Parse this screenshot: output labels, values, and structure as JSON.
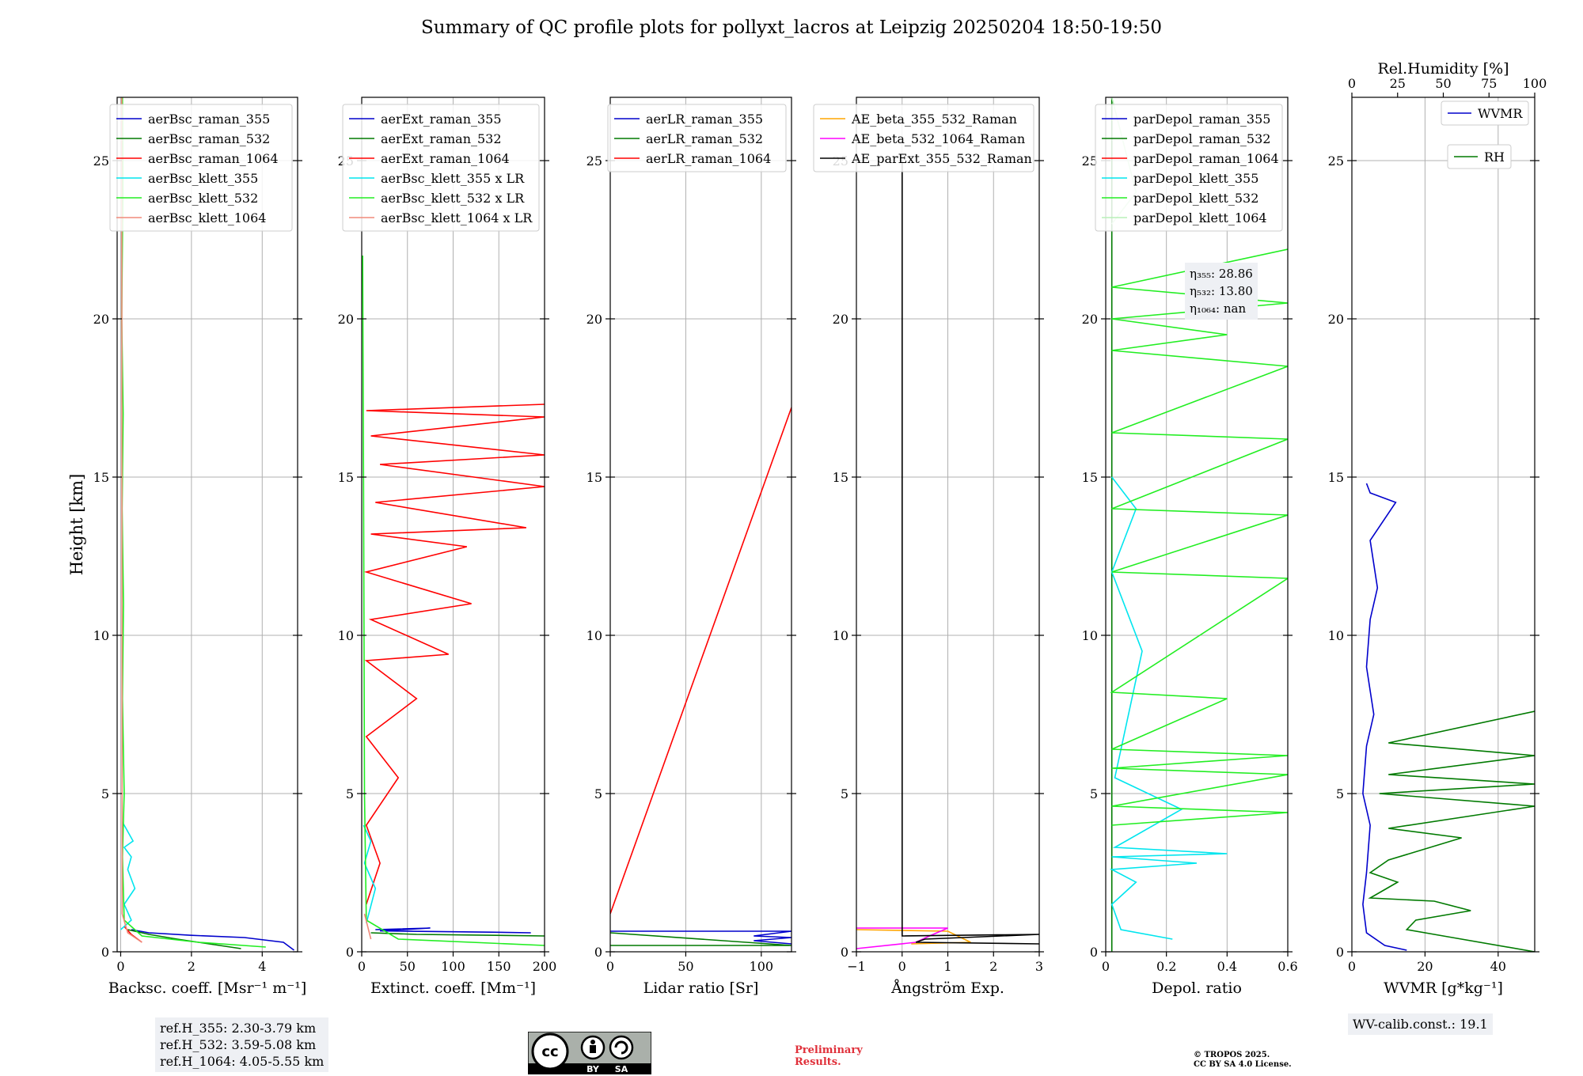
{
  "title": "Summary of QC profile plots for pollyxt_lacros at Leipzig 20250204 18:50-19:50",
  "ylabel": "Height [km]",
  "ref_box": [
    "ref.H_355: 2.30-3.79 km",
    "ref.H_532: 3.59-5.08 km",
    "ref.H_1064: 4.05-5.55 km"
  ],
  "eta_box": [
    "η₃₅₅: 28.86",
    "η₅₃₂: 13.80",
    "η₁₀₆₄: nan"
  ],
  "wv_box": "WV-calib.const.: 19.1",
  "preliminary": [
    "Preliminary",
    "Results."
  ],
  "copyright": [
    "© TROPOS 2025.",
    "CC BY SA 4.0 License."
  ],
  "license_badge": {
    "cc": "cc",
    "by": "BY",
    "sa": "SA"
  },
  "colors": {
    "blue": "#0000cc",
    "green": "#007a00",
    "red": "#ff0000",
    "cyan": "#00e5ee",
    "lime": "#22ee22",
    "salmon": "#f08a7a",
    "orange": "#ffa500",
    "magenta": "#ff00ff",
    "black": "#000000",
    "infobox": "#eef0f4",
    "grid": "#b0b0b0"
  },
  "chart_data": [
    {
      "type": "line",
      "id": "bsc",
      "xlabel": "Backsc. coeff. [Msr⁻¹ m⁻¹]",
      "ylabel": "Height [km]",
      "xlim": [
        -0.1,
        5
      ],
      "ylim": [
        0,
        27
      ],
      "xticks": [
        0,
        2,
        4
      ],
      "yticks": [
        0,
        5,
        10,
        15,
        20,
        25
      ],
      "grid": true,
      "legend": "top-right",
      "series": [
        {
          "name": "aerBsc_raman_355",
          "color": "#0000cc",
          "x": [
            4.9,
            4.6,
            3.5,
            2.0,
            0.8,
            0.3
          ],
          "y": [
            0.05,
            0.3,
            0.45,
            0.52,
            0.6,
            0.7
          ]
        },
        {
          "name": "aerBsc_raman_532",
          "color": "#007a00",
          "x": [
            3.4,
            2.5,
            1.6,
            0.8,
            0.2
          ],
          "y": [
            0.1,
            0.25,
            0.4,
            0.55,
            0.7
          ]
        },
        {
          "name": "aerBsc_raman_1064",
          "color": "#ff0000",
          "x": [
            0.6,
            0.3,
            0.1
          ],
          "y": [
            0.3,
            0.55,
            0.8
          ]
        },
        {
          "name": "aerBsc_klett_355",
          "color": "#00e5ee",
          "x": [
            0.0,
            0.3,
            0.1,
            0.4,
            0.2,
            0.3,
            0.1,
            0.35,
            0.05
          ],
          "y": [
            0.7,
            1.0,
            1.5,
            2.0,
            2.6,
            3.0,
            3.3,
            3.5,
            4.1
          ]
        },
        {
          "name": "aerBsc_klett_532",
          "color": "#22ee22",
          "x": [
            4.1,
            2.2,
            0.6,
            0.1,
            0.05,
            0.1,
            0.05,
            0.08,
            0.04,
            0.07,
            0.03,
            0.06,
            0.05
          ],
          "y": [
            0.15,
            0.3,
            0.5,
            1.0,
            3.0,
            5.0,
            8.0,
            11.0,
            14.0,
            17.0,
            20.0,
            24.0,
            27.0
          ]
        },
        {
          "name": "aerBsc_klett_1064",
          "color": "#f08a7a",
          "x": [
            0.6,
            0.2,
            0.04,
            0.03
          ],
          "y": [
            0.3,
            0.6,
            1.2,
            27.0
          ]
        }
      ]
    },
    {
      "type": "line",
      "id": "ext",
      "xlabel": "Extinct. coeff. [Mm⁻¹]",
      "xlim": [
        0,
        200
      ],
      "ylim": [
        0,
        27
      ],
      "xticks": [
        0,
        50,
        100,
        150,
        200
      ],
      "yticks": [
        0,
        5,
        10,
        15,
        20,
        25
      ],
      "grid": true,
      "legend": "top-right",
      "series": [
        {
          "name": "aerExt_raman_355",
          "color": "#0000cc",
          "x": [
            185,
            140,
            20,
            75,
            15
          ],
          "y": [
            0.6,
            0.62,
            0.66,
            0.75,
            0.7
          ]
        },
        {
          "name": "aerExt_raman_532",
          "color": "#007a00",
          "x": [
            200,
            60,
            10
          ],
          "y": [
            0.5,
            0.55,
            0.6
          ]
        },
        {
          "name": "aerExt_raman_1064",
          "color": "#ff0000",
          "x": [
            5,
            20,
            5,
            40,
            5,
            60,
            5,
            95,
            10,
            120,
            5,
            115,
            10,
            180,
            15,
            200,
            20,
            200,
            10,
            200,
            5,
            200
          ],
          "y": [
            1.5,
            2.8,
            4.0,
            5.5,
            6.8,
            8.0,
            9.2,
            9.4,
            10.5,
            11.0,
            12.0,
            12.8,
            13.2,
            13.4,
            14.2,
            14.7,
            15.4,
            15.7,
            16.3,
            16.9,
            17.1,
            17.3
          ]
        },
        {
          "name": "aerBsc_klett_355 x LR",
          "color": "#00e5ee",
          "x": [
            5,
            15,
            3,
            10,
            2
          ],
          "y": [
            0.9,
            2.0,
            2.8,
            3.5,
            4.0
          ]
        },
        {
          "name": "aerBsc_klett_532 x LR",
          "color": "#22ee22",
          "x": [
            200,
            40,
            5,
            3,
            2,
            1
          ],
          "y": [
            0.2,
            0.4,
            1.0,
            5.0,
            15.0,
            22.0
          ]
        },
        {
          "name": "aerBsc_klett_1064 x LR",
          "color": "#f08a7a",
          "x": [
            10,
            3
          ],
          "y": [
            0.4,
            1.2
          ]
        }
      ]
    },
    {
      "type": "line",
      "id": "lr",
      "xlabel": "Lidar ratio [Sr]",
      "xlim": [
        0,
        120
      ],
      "ylim": [
        0,
        27
      ],
      "xticks": [
        0,
        50,
        100
      ],
      "yticks": [
        0,
        5,
        10,
        15,
        20,
        25
      ],
      "grid": true,
      "legend": "top-right",
      "series": [
        {
          "name": "aerLR_raman_355",
          "color": "#0000cc",
          "x": [
            0,
            120,
            95,
            120,
            95,
            120
          ],
          "y": [
            0.65,
            0.65,
            0.5,
            0.45,
            0.35,
            0.25
          ]
        },
        {
          "name": "aerLR_raman_532",
          "color": "#007a00",
          "x": [
            0,
            120,
            0
          ],
          "y": [
            0.2,
            0.2,
            0.6
          ]
        },
        {
          "name": "aerLR_raman_1064",
          "color": "#ff0000",
          "x": [
            0,
            120
          ],
          "y": [
            1.2,
            17.2
          ]
        }
      ]
    },
    {
      "type": "line",
      "id": "ae",
      "xlabel": "Ångström Exp.",
      "xlim": [
        -1,
        3
      ],
      "ylim": [
        0,
        27
      ],
      "xticks": [
        -1,
        0,
        1,
        2,
        3
      ],
      "yticks": [
        0,
        5,
        10,
        15,
        20,
        25
      ],
      "grid": true,
      "legend": "top-right",
      "series": [
        {
          "name": "AE_beta_355_532_Raman",
          "color": "#ffa500",
          "x": [
            -1,
            1.0,
            1.5,
            0.2
          ],
          "y": [
            0.7,
            0.65,
            0.3,
            0.25
          ]
        },
        {
          "name": "AE_beta_532_1064_Raman",
          "color": "#ff00ff",
          "x": [
            -1,
            1.0,
            0.6,
            0.3,
            -1
          ],
          "y": [
            0.75,
            0.75,
            0.5,
            0.3,
            0.1
          ]
        },
        {
          "name": "AE_parExt_355_532_Raman",
          "color": "#000000",
          "x": [
            0,
            0,
            3,
            0.5,
            0.3,
            3
          ],
          "y": [
            25.0,
            0.5,
            0.55,
            0.4,
            0.3,
            0.25
          ]
        }
      ]
    },
    {
      "type": "line",
      "id": "depol",
      "xlabel": "Depol. ratio",
      "xlim": [
        0,
        0.6
      ],
      "ylim": [
        0,
        27
      ],
      "xticks": [
        0.0,
        0.2,
        0.4,
        0.6
      ],
      "yticks": [
        0,
        5,
        10,
        15,
        20,
        25
      ],
      "grid": true,
      "legend": "top-right",
      "series": [
        {
          "name": "parDepol_raman_355",
          "color": "#0000cc",
          "x": [],
          "y": []
        },
        {
          "name": "parDepol_raman_532",
          "color": "#007a00",
          "x": [
            0.02,
            0.02
          ],
          "y": [
            0,
            27
          ]
        },
        {
          "name": "parDepol_raman_1064",
          "color": "#ff0000",
          "x": [],
          "y": []
        },
        {
          "name": "parDepol_klett_355",
          "color": "#00e5ee",
          "x": [
            0.22,
            0.05,
            0.02,
            0.1,
            0.02,
            0.3,
            0.02,
            0.4,
            0.03,
            0.25,
            0.03,
            0.12,
            0.02,
            0.1,
            0.02
          ],
          "y": [
            0.4,
            0.7,
            1.5,
            2.2,
            2.6,
            2.8,
            3.0,
            3.1,
            3.3,
            4.5,
            5.5,
            9.5,
            12.0,
            14.0,
            15.0
          ]
        },
        {
          "name": "parDepol_klett_532",
          "color": "#22ee22",
          "x": [
            0.02,
            0.6,
            0.02,
            0.6,
            0.02,
            0.6,
            0.02,
            0.4,
            0.02,
            0.6,
            0.02,
            0.6,
            0.02,
            0.6,
            0.02,
            0.6,
            0.02,
            0.4,
            0.02,
            0.6,
            0.02,
            0.6
          ],
          "y": [
            4.0,
            4.4,
            4.6,
            5.6,
            5.8,
            6.2,
            6.4,
            8.0,
            8.2,
            11.8,
            12.0,
            13.8,
            14.0,
            16.2,
            16.4,
            18.5,
            19.0,
            19.5,
            20.0,
            20.5,
            21.0,
            22.2
          ]
        },
        {
          "name": "parDepol_klett_1064",
          "color": "#b8f0b8",
          "x": [
            0.02,
            0.1,
            0.02
          ],
          "y": [
            23.0,
            24.0,
            27.0
          ]
        }
      ]
    },
    {
      "type": "line",
      "id": "wv",
      "xlabel": "WVMR [g*kg⁻¹]",
      "x2label": "Rel.Humidity [%]",
      "xlim": [
        0,
        50
      ],
      "x2lim": [
        0,
        100
      ],
      "ylim": [
        0,
        27
      ],
      "xticks": [
        0,
        20,
        40
      ],
      "x2ticks": [
        0,
        25,
        50,
        75,
        100
      ],
      "yticks": [
        0,
        5,
        10,
        15,
        20,
        25
      ],
      "grid": true,
      "legend": "top-right",
      "series": [
        {
          "name": "WVMR",
          "color": "#0000cc",
          "x": [
            15,
            9,
            4,
            3,
            4,
            5,
            3,
            4,
            6,
            4,
            5,
            7,
            5,
            12,
            5,
            4
          ],
          "y": [
            0.05,
            0.2,
            0.6,
            1.5,
            2.5,
            4.0,
            5.0,
            6.5,
            7.5,
            9.0,
            10.5,
            11.5,
            13.0,
            14.2,
            14.5,
            14.8
          ]
        },
        {
          "name": "RH",
          "color": "#007a00",
          "x2": [
            100,
            50,
            30,
            35,
            65,
            45,
            10,
            25,
            10,
            20,
            60,
            20,
            100,
            15,
            100,
            20,
            100,
            20,
            100
          ],
          "y": [
            0.0,
            0.5,
            0.7,
            1.0,
            1.3,
            1.6,
            1.7,
            2.2,
            2.5,
            2.9,
            3.6,
            3.9,
            4.6,
            5.0,
            5.3,
            5.6,
            6.2,
            6.6,
            7.6
          ]
        }
      ]
    }
  ]
}
